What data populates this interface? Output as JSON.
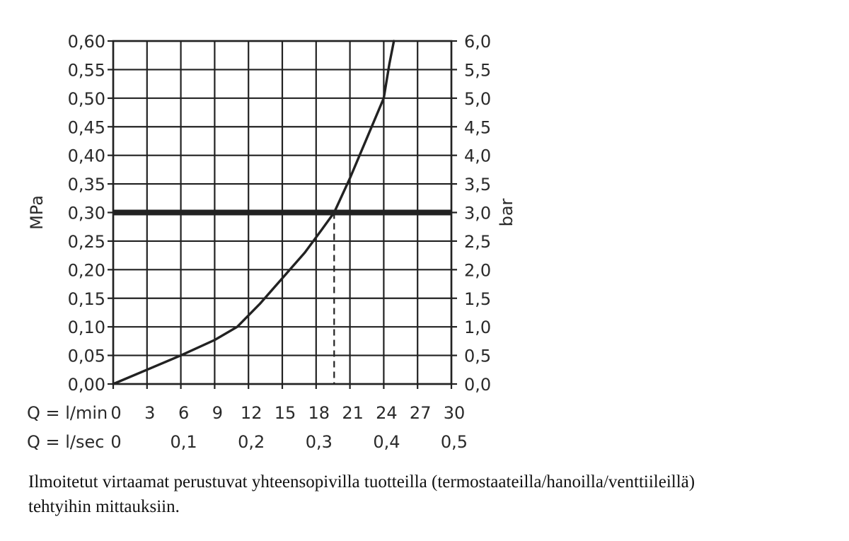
{
  "chart_data": {
    "type": "line",
    "y_label_left": "MPa",
    "y_label_right": "bar",
    "ylim": [
      0,
      0.6
    ],
    "xlim": [
      0,
      30
    ],
    "y_ticks_left": [
      "0,00",
      "0,05",
      "0,10",
      "0,15",
      "0,20",
      "0,25",
      "0,30",
      "0,35",
      "0,40",
      "0,45",
      "0,50",
      "0,55",
      "0,60"
    ],
    "y_ticks_right": [
      "0,0",
      "0,5",
      "1,0",
      "1,5",
      "2,0",
      "2,5",
      "3,0",
      "3,5",
      "4,0",
      "4,5",
      "5,0",
      "5,5",
      "6,0"
    ],
    "x_axis_lmin": {
      "label": "Q = l/min",
      "ticks": [
        "0",
        "3",
        "6",
        "9",
        "12",
        "15",
        "18",
        "21",
        "24",
        "27",
        "30"
      ]
    },
    "x_axis_lsec": {
      "label": "Q = l/sec",
      "ticks": [
        {
          "label": "0",
          "x": 0
        },
        {
          "label": "0,1",
          "x": 6
        },
        {
          "label": "0,2",
          "x": 12
        },
        {
          "label": "0,3",
          "x": 18
        },
        {
          "label": "0,4",
          "x": 24
        },
        {
          "label": "0,5",
          "x": 30
        }
      ]
    },
    "grid": true,
    "series": [
      {
        "values": [
          [
            0,
            0.0
          ],
          [
            3,
            0.025
          ],
          [
            6,
            0.05
          ],
          [
            9,
            0.077
          ],
          [
            11,
            0.1
          ],
          [
            13,
            0.14
          ],
          [
            15,
            0.185
          ],
          [
            17,
            0.23
          ],
          [
            18.5,
            0.27
          ],
          [
            19.6,
            0.3
          ],
          [
            21,
            0.36
          ],
          [
            22.5,
            0.43
          ],
          [
            24,
            0.5
          ],
          [
            24.5,
            0.56
          ],
          [
            24.9,
            0.6
          ]
        ]
      }
    ],
    "reference_line": {
      "y": 0.3
    },
    "marker_line": {
      "x": 19.6,
      "y_top": 0.3
    }
  },
  "caption": {
    "line1": "Ilmoitetut virtaamat perustuvat yhteensopivilla tuotteilla (termostaateilla/hanoilla/venttiileillä)",
    "line2": "tehtyihin mittauksiin."
  }
}
